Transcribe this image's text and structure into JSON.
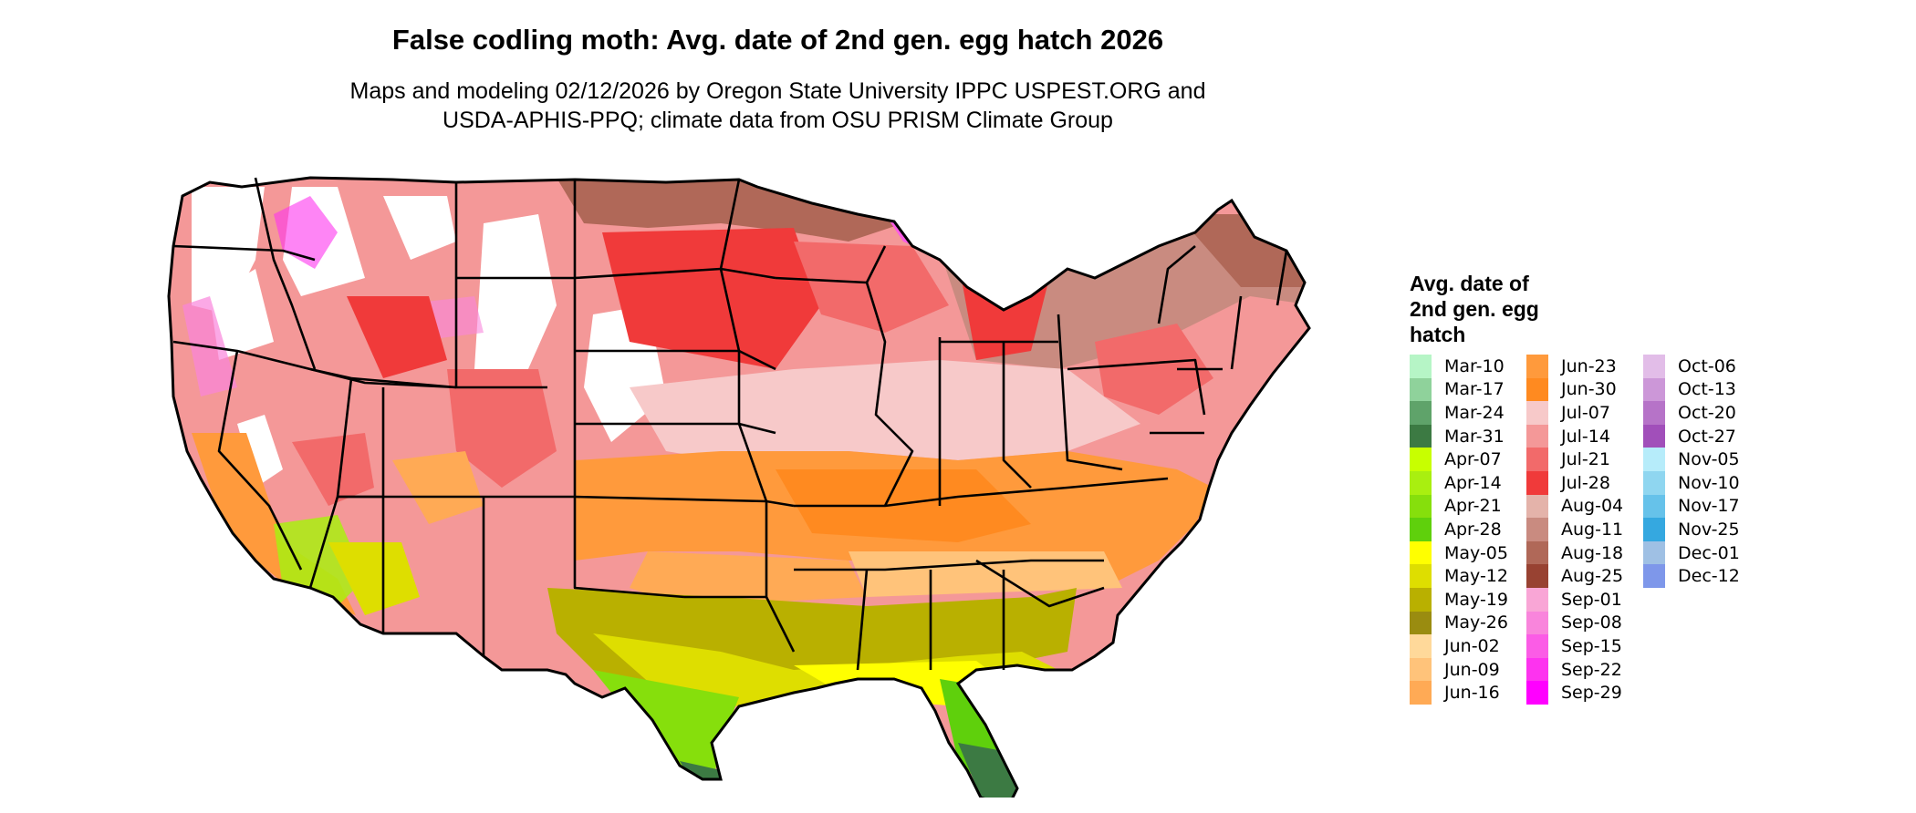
{
  "title": "False codling moth: Avg. date of 2nd gen. egg hatch 2026",
  "subtitle_line1": "Maps and modeling 02/12/2026 by Oregon State University IPPC USPEST.ORG and",
  "subtitle_line2": "USDA-APHIS-PPQ; climate data from OSU PRISM Climate Group",
  "legend": {
    "title_line1": "Avg. date of",
    "title_line2": "2nd gen. egg",
    "title_line3": "hatch",
    "columns": [
      [
        {
          "label": "Mar-10",
          "color": "#b6f5c6"
        },
        {
          "label": "Mar-17",
          "color": "#8fd29b"
        },
        {
          "label": "Mar-24",
          "color": "#5fa36a"
        },
        {
          "label": "Mar-31",
          "color": "#3c7a43"
        },
        {
          "label": "Apr-07",
          "color": "#c8ff00"
        },
        {
          "label": "Apr-14",
          "color": "#a9ef10"
        },
        {
          "label": "Apr-21",
          "color": "#86df0c"
        },
        {
          "label": "Apr-28",
          "color": "#5fd00c"
        },
        {
          "label": "May-05",
          "color": "#ffff00"
        },
        {
          "label": "May-12",
          "color": "#dede00"
        },
        {
          "label": "May-19",
          "color": "#b9b000"
        },
        {
          "label": "May-26",
          "color": "#9a8c10"
        },
        {
          "label": "Jun-02",
          "color": "#ffd99a"
        },
        {
          "label": "Jun-09",
          "color": "#ffc37a"
        },
        {
          "label": "Jun-16",
          "color": "#ffaa55"
        }
      ],
      [
        {
          "label": "Jun-23",
          "color": "#ff9a3c"
        },
        {
          "label": "Jun-30",
          "color": "#ff8a20"
        },
        {
          "label": "Jul-07",
          "color": "#f7c9c9"
        },
        {
          "label": "Jul-14",
          "color": "#f49898"
        },
        {
          "label": "Jul-21",
          "color": "#f26a6a"
        },
        {
          "label": "Jul-28",
          "color": "#f03a3a"
        },
        {
          "label": "Aug-04",
          "color": "#e4b3aa"
        },
        {
          "label": "Aug-11",
          "color": "#c98b80"
        },
        {
          "label": "Aug-18",
          "color": "#b06858"
        },
        {
          "label": "Aug-25",
          "color": "#984232"
        },
        {
          "label": "Sep-01",
          "color": "#f9a6d6"
        },
        {
          "label": "Sep-08",
          "color": "#f985dc"
        },
        {
          "label": "Sep-15",
          "color": "#fb5ce6"
        },
        {
          "label": "Sep-22",
          "color": "#fd33ef"
        },
        {
          "label": "Sep-29",
          "color": "#ff00ff"
        }
      ],
      [
        {
          "label": "Oct-06",
          "color": "#e2bde8"
        },
        {
          "label": "Oct-13",
          "color": "#cc97d8"
        },
        {
          "label": "Oct-20",
          "color": "#b673c8"
        },
        {
          "label": "Oct-27",
          "color": "#a14fba"
        },
        {
          "label": "Nov-05",
          "color": "#b6ecfa"
        },
        {
          "label": "Nov-10",
          "color": "#8fd6f0"
        },
        {
          "label": "Nov-17",
          "color": "#66c2ea"
        },
        {
          "label": "Nov-25",
          "color": "#35a8e0"
        },
        {
          "label": "Dec-01",
          "color": "#9fc0e4"
        },
        {
          "label": "Dec-12",
          "color": "#7e97ea"
        }
      ]
    ]
  }
}
